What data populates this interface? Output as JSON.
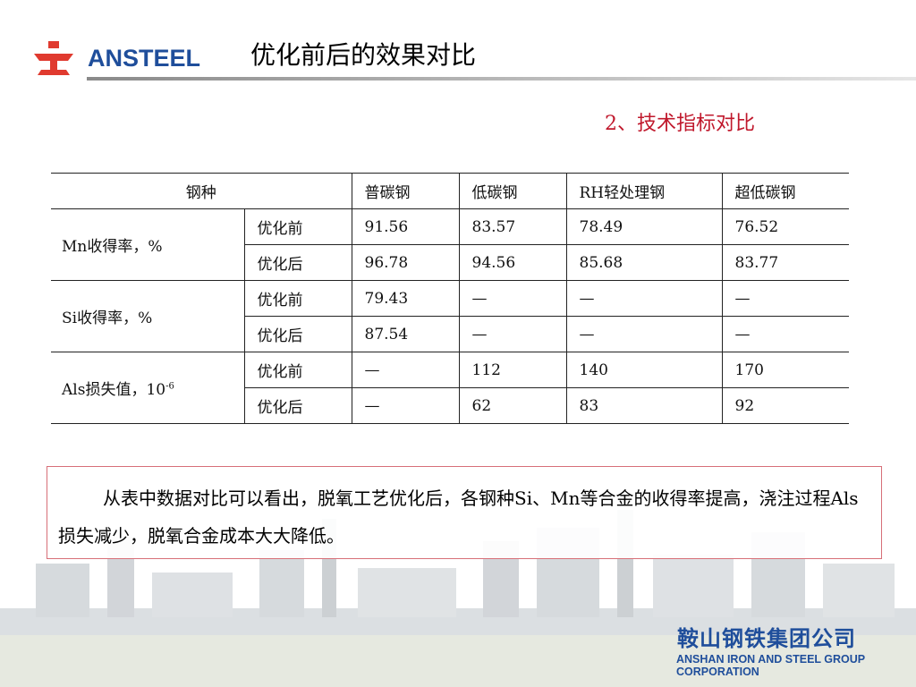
{
  "header": {
    "logo_text": "ANSTEEL",
    "title": "优化前后的效果对比"
  },
  "subtitle": "2、技术指标对比",
  "table": {
    "columns": [
      "钢种",
      "普碳钢",
      "低碳钢",
      "RH轻处理钢",
      "超低碳钢"
    ],
    "groups": [
      {
        "metric": "Mn收得率，%",
        "rows": [
          {
            "stage": "优化前",
            "values": [
              "91.56",
              "83.57",
              "78.49",
              "76.52"
            ]
          },
          {
            "stage": "优化后",
            "values": [
              "96.78",
              "94.56",
              "85.68",
              "83.77"
            ]
          }
        ]
      },
      {
        "metric": "Si收得率，%",
        "rows": [
          {
            "stage": "优化前",
            "values": [
              "79.43",
              "—",
              "—",
              "—"
            ]
          },
          {
            "stage": "优化后",
            "values": [
              "87.54",
              "—",
              "—",
              "—"
            ]
          }
        ]
      },
      {
        "metric": "Als损失值，10",
        "metric_sup": "-6",
        "rows": [
          {
            "stage": "优化前",
            "values": [
              "—",
              "112",
              "140",
              "170"
            ]
          },
          {
            "stage": "优化后",
            "values": [
              "—",
              "62",
              "83",
              "92"
            ]
          }
        ]
      }
    ]
  },
  "conclusion": "从表中数据对比可以看出，脱氧工艺优化后，各钢种Si、Mn等合金的收得率提高，浇注过程Als损失减少，脱氧合金成本大大降低。",
  "footer": {
    "company_cn": "鞍山钢铁集团公司",
    "company_en": "ANSHAN IRON AND STEEL GROUP CORPORATION"
  },
  "colors": {
    "brand_red": "#e03a2f",
    "brand_blue": "#1f4e9b",
    "subtitle_red": "#c0182c",
    "box_border": "#d76f78"
  }
}
